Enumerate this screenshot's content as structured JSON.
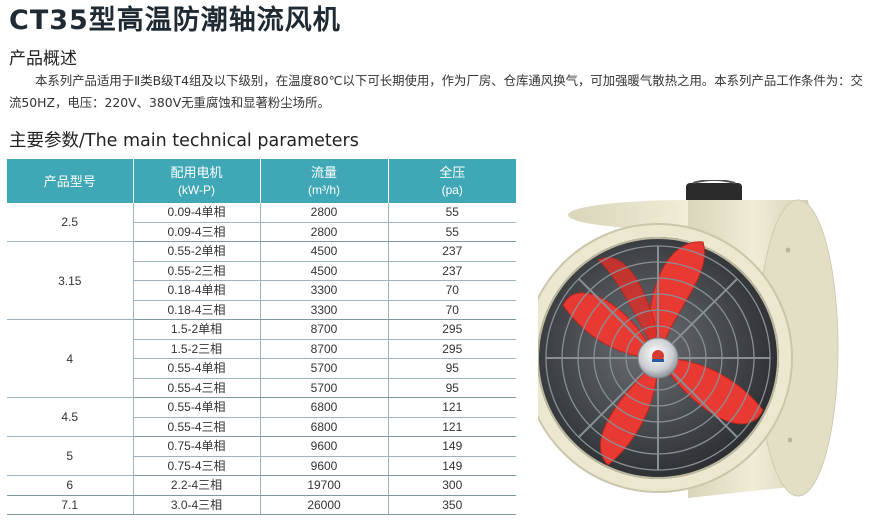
{
  "title": "CT35型高温防潮轴流风机",
  "overview": {
    "heading": "产品概述",
    "text": "本系列产品适用于Ⅱ类B级T4组及以下级别，在温度80℃以下可长期使用，作为厂房、仓库通风换气，可加强暖气散热之用。本系列产品工作条件为：交流50HZ，电压：220V、380V无重腐蚀和显著粉尘场所。"
  },
  "params": {
    "heading": "主要参数/The main technical parameters",
    "headers": {
      "model": "产品型号",
      "motor_line1": "配用电机",
      "motor_line2": "(kW-P)",
      "flow_line1": "流量",
      "flow_line2": "(m³/h)",
      "pressure_line1": "全压",
      "pressure_line2": "(pa)"
    },
    "colors": {
      "header_bg": "#3fa7b5",
      "grid": "#9fb3bd"
    },
    "groups": [
      {
        "model": "2.5",
        "rows": [
          {
            "motor": "0.09-4单相",
            "flow": "2800",
            "pressure": "55"
          },
          {
            "motor": "0.09-4三相",
            "flow": "2800",
            "pressure": "55"
          }
        ]
      },
      {
        "model": "3.15",
        "rows": [
          {
            "motor": "0.55-2单相",
            "flow": "4500",
            "pressure": "237"
          },
          {
            "motor": "0.55-2三相",
            "flow": "4500",
            "pressure": "237"
          },
          {
            "motor": "0.18-4单相",
            "flow": "3300",
            "pressure": "70"
          },
          {
            "motor": "0.18-4三相",
            "flow": "3300",
            "pressure": "70"
          }
        ]
      },
      {
        "model": "4",
        "rows": [
          {
            "motor": "1.5-2单相",
            "flow": "8700",
            "pressure": "295"
          },
          {
            "motor": "1.5-2三相",
            "flow": "8700",
            "pressure": "295"
          },
          {
            "motor": "0.55-4单相",
            "flow": "5700",
            "pressure": "95"
          },
          {
            "motor": "0.55-4三相",
            "flow": "5700",
            "pressure": "95"
          }
        ]
      },
      {
        "model": "4.5",
        "rows": [
          {
            "motor": "0.55-4单相",
            "flow": "6800",
            "pressure": "121"
          },
          {
            "motor": "0.55-4三相",
            "flow": "6800",
            "pressure": "121"
          }
        ]
      },
      {
        "model": "5",
        "rows": [
          {
            "motor": "0.75-4单相",
            "flow": "9600",
            "pressure": "149"
          },
          {
            "motor": "0.75-4三相",
            "flow": "9600",
            "pressure": "149"
          }
        ]
      },
      {
        "model": "6",
        "rows": [
          {
            "motor": "2.2-4三相",
            "flow": "19700",
            "pressure": "300"
          }
        ]
      },
      {
        "model": "7.1",
        "rows": [
          {
            "motor": "3.0-4三相",
            "flow": "26000",
            "pressure": "350"
          }
        ]
      }
    ]
  },
  "product_image": {
    "icon": "axial-fan-image",
    "colors": {
      "housing": "#ece8cf",
      "blade": "#e83a32",
      "guard": "#7c8186",
      "box": "#2b2b2b"
    }
  }
}
